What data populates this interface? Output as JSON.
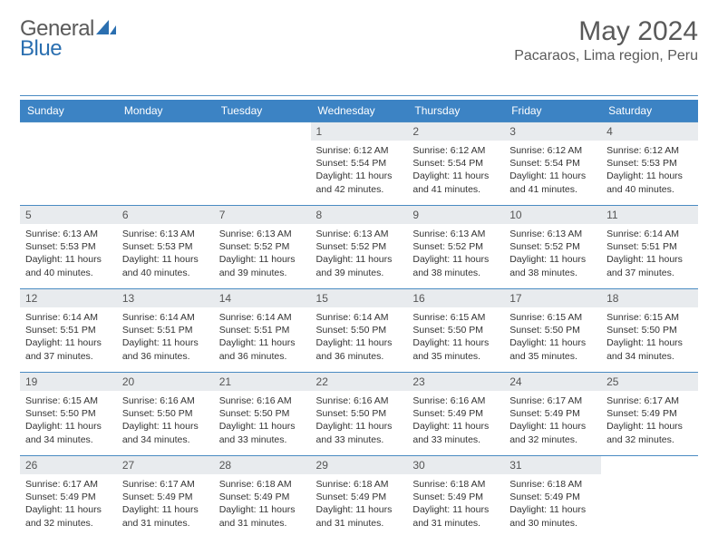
{
  "brand": {
    "general": "General",
    "blue": "Blue"
  },
  "title": "May 2024",
  "location": "Pacaraos, Lima region, Peru",
  "colors": {
    "header_bg": "#3c83c4",
    "header_text": "#ffffff",
    "border": "#4a8bc2",
    "daynum_bg": "#e8ebee",
    "text": "#333333",
    "brand_gray": "#5a5a5a",
    "brand_blue": "#2b6fb0"
  },
  "weekdays": [
    "Sunday",
    "Monday",
    "Tuesday",
    "Wednesday",
    "Thursday",
    "Friday",
    "Saturday"
  ],
  "weeks": [
    [
      null,
      null,
      null,
      {
        "n": "1",
        "sr": "Sunrise: 6:12 AM",
        "ss": "Sunset: 5:54 PM",
        "d1": "Daylight: 11 hours",
        "d2": "and 42 minutes."
      },
      {
        "n": "2",
        "sr": "Sunrise: 6:12 AM",
        "ss": "Sunset: 5:54 PM",
        "d1": "Daylight: 11 hours",
        "d2": "and 41 minutes."
      },
      {
        "n": "3",
        "sr": "Sunrise: 6:12 AM",
        "ss": "Sunset: 5:54 PM",
        "d1": "Daylight: 11 hours",
        "d2": "and 41 minutes."
      },
      {
        "n": "4",
        "sr": "Sunrise: 6:12 AM",
        "ss": "Sunset: 5:53 PM",
        "d1": "Daylight: 11 hours",
        "d2": "and 40 minutes."
      }
    ],
    [
      {
        "n": "5",
        "sr": "Sunrise: 6:13 AM",
        "ss": "Sunset: 5:53 PM",
        "d1": "Daylight: 11 hours",
        "d2": "and 40 minutes."
      },
      {
        "n": "6",
        "sr": "Sunrise: 6:13 AM",
        "ss": "Sunset: 5:53 PM",
        "d1": "Daylight: 11 hours",
        "d2": "and 40 minutes."
      },
      {
        "n": "7",
        "sr": "Sunrise: 6:13 AM",
        "ss": "Sunset: 5:52 PM",
        "d1": "Daylight: 11 hours",
        "d2": "and 39 minutes."
      },
      {
        "n": "8",
        "sr": "Sunrise: 6:13 AM",
        "ss": "Sunset: 5:52 PM",
        "d1": "Daylight: 11 hours",
        "d2": "and 39 minutes."
      },
      {
        "n": "9",
        "sr": "Sunrise: 6:13 AM",
        "ss": "Sunset: 5:52 PM",
        "d1": "Daylight: 11 hours",
        "d2": "and 38 minutes."
      },
      {
        "n": "10",
        "sr": "Sunrise: 6:13 AM",
        "ss": "Sunset: 5:52 PM",
        "d1": "Daylight: 11 hours",
        "d2": "and 38 minutes."
      },
      {
        "n": "11",
        "sr": "Sunrise: 6:14 AM",
        "ss": "Sunset: 5:51 PM",
        "d1": "Daylight: 11 hours",
        "d2": "and 37 minutes."
      }
    ],
    [
      {
        "n": "12",
        "sr": "Sunrise: 6:14 AM",
        "ss": "Sunset: 5:51 PM",
        "d1": "Daylight: 11 hours",
        "d2": "and 37 minutes."
      },
      {
        "n": "13",
        "sr": "Sunrise: 6:14 AM",
        "ss": "Sunset: 5:51 PM",
        "d1": "Daylight: 11 hours",
        "d2": "and 36 minutes."
      },
      {
        "n": "14",
        "sr": "Sunrise: 6:14 AM",
        "ss": "Sunset: 5:51 PM",
        "d1": "Daylight: 11 hours",
        "d2": "and 36 minutes."
      },
      {
        "n": "15",
        "sr": "Sunrise: 6:14 AM",
        "ss": "Sunset: 5:50 PM",
        "d1": "Daylight: 11 hours",
        "d2": "and 36 minutes."
      },
      {
        "n": "16",
        "sr": "Sunrise: 6:15 AM",
        "ss": "Sunset: 5:50 PM",
        "d1": "Daylight: 11 hours",
        "d2": "and 35 minutes."
      },
      {
        "n": "17",
        "sr": "Sunrise: 6:15 AM",
        "ss": "Sunset: 5:50 PM",
        "d1": "Daylight: 11 hours",
        "d2": "and 35 minutes."
      },
      {
        "n": "18",
        "sr": "Sunrise: 6:15 AM",
        "ss": "Sunset: 5:50 PM",
        "d1": "Daylight: 11 hours",
        "d2": "and 34 minutes."
      }
    ],
    [
      {
        "n": "19",
        "sr": "Sunrise: 6:15 AM",
        "ss": "Sunset: 5:50 PM",
        "d1": "Daylight: 11 hours",
        "d2": "and 34 minutes."
      },
      {
        "n": "20",
        "sr": "Sunrise: 6:16 AM",
        "ss": "Sunset: 5:50 PM",
        "d1": "Daylight: 11 hours",
        "d2": "and 34 minutes."
      },
      {
        "n": "21",
        "sr": "Sunrise: 6:16 AM",
        "ss": "Sunset: 5:50 PM",
        "d1": "Daylight: 11 hours",
        "d2": "and 33 minutes."
      },
      {
        "n": "22",
        "sr": "Sunrise: 6:16 AM",
        "ss": "Sunset: 5:50 PM",
        "d1": "Daylight: 11 hours",
        "d2": "and 33 minutes."
      },
      {
        "n": "23",
        "sr": "Sunrise: 6:16 AM",
        "ss": "Sunset: 5:49 PM",
        "d1": "Daylight: 11 hours",
        "d2": "and 33 minutes."
      },
      {
        "n": "24",
        "sr": "Sunrise: 6:17 AM",
        "ss": "Sunset: 5:49 PM",
        "d1": "Daylight: 11 hours",
        "d2": "and 32 minutes."
      },
      {
        "n": "25",
        "sr": "Sunrise: 6:17 AM",
        "ss": "Sunset: 5:49 PM",
        "d1": "Daylight: 11 hours",
        "d2": "and 32 minutes."
      }
    ],
    [
      {
        "n": "26",
        "sr": "Sunrise: 6:17 AM",
        "ss": "Sunset: 5:49 PM",
        "d1": "Daylight: 11 hours",
        "d2": "and 32 minutes."
      },
      {
        "n": "27",
        "sr": "Sunrise: 6:17 AM",
        "ss": "Sunset: 5:49 PM",
        "d1": "Daylight: 11 hours",
        "d2": "and 31 minutes."
      },
      {
        "n": "28",
        "sr": "Sunrise: 6:18 AM",
        "ss": "Sunset: 5:49 PM",
        "d1": "Daylight: 11 hours",
        "d2": "and 31 minutes."
      },
      {
        "n": "29",
        "sr": "Sunrise: 6:18 AM",
        "ss": "Sunset: 5:49 PM",
        "d1": "Daylight: 11 hours",
        "d2": "and 31 minutes."
      },
      {
        "n": "30",
        "sr": "Sunrise: 6:18 AM",
        "ss": "Sunset: 5:49 PM",
        "d1": "Daylight: 11 hours",
        "d2": "and 31 minutes."
      },
      {
        "n": "31",
        "sr": "Sunrise: 6:18 AM",
        "ss": "Sunset: 5:49 PM",
        "d1": "Daylight: 11 hours",
        "d2": "and 30 minutes."
      },
      null
    ]
  ]
}
